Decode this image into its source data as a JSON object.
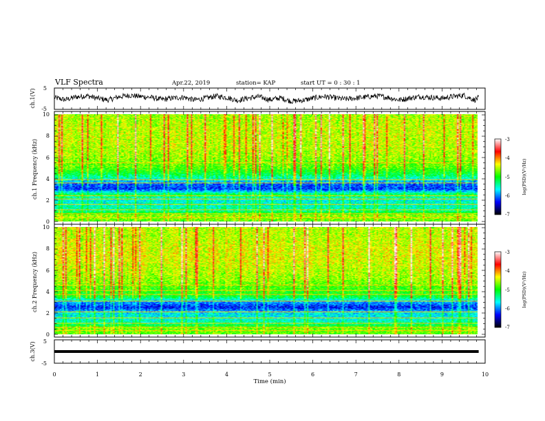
{
  "header": {
    "title": "VLF Spectra",
    "date": "Apr.22, 2019",
    "station": "station= KAP",
    "start": "start  UT =   0 : 30 : 1"
  },
  "colorbar": {
    "label": "log(PSD)(V²/Hz)",
    "ticks": [
      "-3",
      "-4",
      "-5",
      "-6",
      "-7"
    ],
    "stops": [
      "#ffffff",
      "#ff0000",
      "#ffff00",
      "#00ff00",
      "#00ffff",
      "#0000ff",
      "#000000"
    ]
  },
  "chart_data": [
    {
      "type": "line",
      "title": "",
      "ylabel": "ch.1(V)",
      "ylim": [
        -5,
        5
      ],
      "yticks": [
        "5",
        "-5"
      ],
      "xlim": [
        0,
        9.85
      ],
      "series": [
        {
          "x": [
            0,
            0.25,
            0.5,
            0.75,
            1,
            1.25,
            1.5,
            1.75,
            2,
            2.25,
            2.5,
            2.75,
            3,
            3.25,
            3.5,
            3.75,
            4,
            4.25,
            4.5,
            4.75,
            5,
            5.25,
            5.5,
            5.75,
            6,
            6.25,
            6.5,
            6.75,
            7,
            7.25,
            7.5,
            7.75,
            8,
            8.25,
            8.5,
            8.75,
            9,
            9.25,
            9.5,
            9.75,
            9.85
          ],
          "values": [
            0.5,
            -0.5,
            0.8,
            1.4,
            0.2,
            -0.6,
            0.9,
            1.6,
            1.0,
            0.6,
            -0.4,
            0.3,
            0.7,
            -0.6,
            0.2,
            1.2,
            0.6,
            -0.8,
            0.3,
            0.9,
            -0.5,
            0.4,
            -1.2,
            -0.8,
            0.2,
            1.1,
            0.4,
            -0.2,
            0.3,
            0.8,
            1.3,
            0.6,
            -0.6,
            0.3,
            1.0,
            0.6,
            0.2,
            1.0,
            1.6,
            -0.6,
            0.4
          ]
        }
      ]
    },
    {
      "type": "heatmap",
      "title": "",
      "ylabel": "ch.1 Frequency (kHz)",
      "ylim": [
        0,
        10
      ],
      "yticks": [
        "0",
        "2",
        "4",
        "6",
        "8",
        "10"
      ],
      "xlim": [
        0,
        9.85
      ],
      "zlim": [
        -7,
        -3
      ],
      "profile_khz": [
        0,
        0.5,
        1,
        1.5,
        2,
        2.5,
        3,
        3.5,
        4,
        4.5,
        5,
        6,
        7,
        8,
        9,
        10
      ],
      "profile_log_psd": [
        -4.8,
        -4.6,
        -5.4,
        -5.5,
        -5.6,
        -5.2,
        -6.2,
        -6.1,
        -5.5,
        -5.1,
        -4.8,
        -4.6,
        -4.5,
        -4.5,
        -4.5,
        -4.6
      ],
      "lines_khz": [
        0.3,
        0.7,
        1.1,
        1.6,
        2.1,
        2.4,
        3.6,
        3.9,
        5.5
      ]
    },
    {
      "type": "heatmap",
      "title": "",
      "ylabel": "ch.2 Frequency (kHz)",
      "ylim": [
        0,
        10
      ],
      "yticks": [
        "0",
        "2",
        "4",
        "6",
        "8",
        "10"
      ],
      "xlim": [
        0,
        9.85
      ],
      "zlim": [
        -7,
        -3
      ],
      "profile_khz": [
        0,
        0.5,
        1,
        1.5,
        2,
        2.5,
        3,
        3.5,
        4,
        4.5,
        5,
        6,
        7,
        8,
        9,
        10
      ],
      "profile_log_psd": [
        -4.8,
        -4.7,
        -5.4,
        -5.6,
        -5.7,
        -6.3,
        -5.9,
        -5.1,
        -4.9,
        -4.8,
        -4.6,
        -4.5,
        -4.4,
        -4.4,
        -4.5,
        -4.5
      ],
      "lines_khz": [
        0.3,
        0.6,
        1.0,
        1.5,
        2.1,
        3.1,
        3.7,
        4.1,
        4.6
      ]
    },
    {
      "type": "line",
      "title": "",
      "ylabel": "ch.3(V)",
      "ylim": [
        -5,
        5
      ],
      "yticks": [
        "5",
        "-5"
      ],
      "xlabel": "Time  (min)",
      "xlim": [
        0,
        10
      ],
      "xticks": [
        "0",
        "1",
        "2",
        "3",
        "4",
        "5",
        "6",
        "7",
        "8",
        "9",
        "10"
      ],
      "series": [
        {
          "x": [
            0,
            9.85
          ],
          "values": [
            0,
            0
          ]
        }
      ]
    }
  ]
}
